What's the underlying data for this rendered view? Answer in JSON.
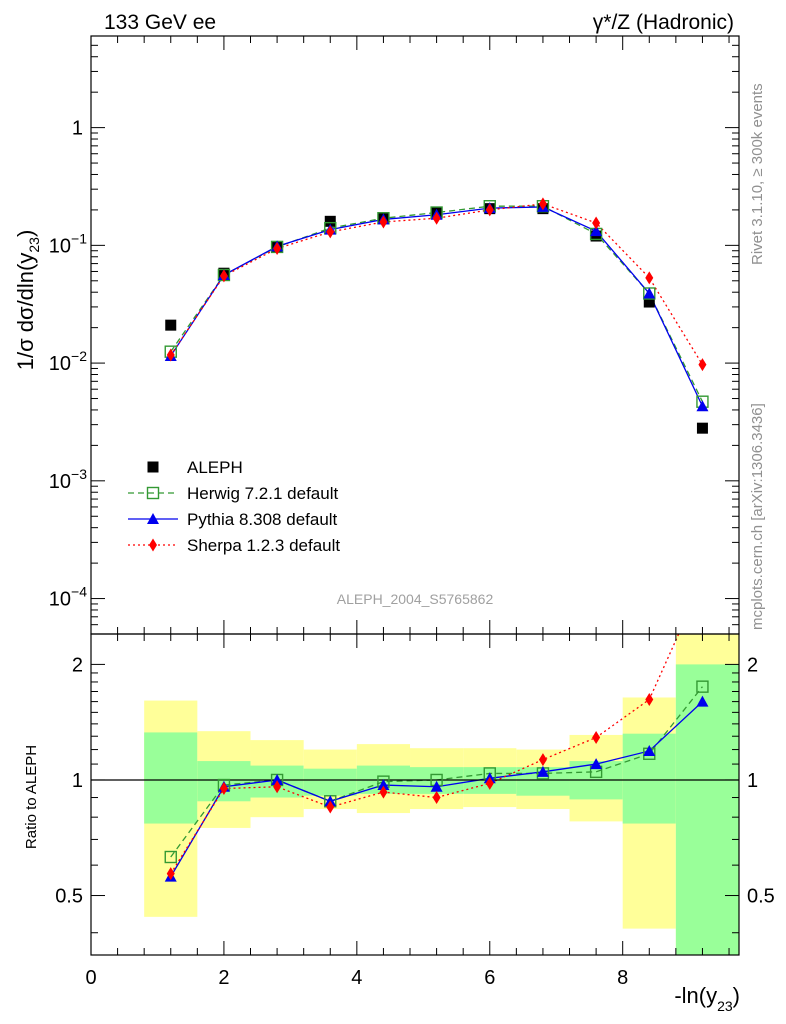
{
  "header": {
    "left": "133 GeV ee",
    "right": "γ*/Z (Hadronic)"
  },
  "side": {
    "rivet": "Rivet 3.1.10, ≥ 300k events",
    "mcplots": "mcplots.cern.ch [arXiv:1306.3436]"
  },
  "analysis_label": "ALEPH_2004_S5765862",
  "colors": {
    "data": "#000000",
    "herwig": "#339933",
    "pythia": "#0000ee",
    "sherpa": "#ff0000",
    "band_inner": "#99ff99",
    "band_outer": "#ffff99"
  },
  "chart_data": [
    {
      "type": "line",
      "scale": "log",
      "ylabel": "1/σ dσ/dln(y23)",
      "ylim": [
        5e-05,
        6
      ],
      "xlim": [
        0,
        9.75
      ],
      "yticks": [
        {
          "value": 0.0001,
          "mant": "10",
          "exp": "−4"
        },
        {
          "value": 0.001,
          "mant": "10",
          "exp": "−3"
        },
        {
          "value": 0.01,
          "mant": "10",
          "exp": "−2"
        },
        {
          "value": 0.1,
          "mant": "10",
          "exp": "−1"
        },
        {
          "value": 1,
          "mant": "1",
          "exp": ""
        }
      ],
      "legend_position": "bottom-left",
      "x": [
        1.2,
        2.0,
        2.8,
        3.6,
        4.4,
        5.2,
        6.0,
        6.8,
        7.6,
        8.4,
        9.2
      ],
      "series": [
        {
          "name": "ALEPH",
          "key": "data",
          "marker": "square",
          "line": "none",
          "values": [
            0.021,
            0.058,
            0.097,
            0.16,
            0.17,
            0.19,
            0.205,
            0.205,
            0.12,
            0.033,
            0.0028
          ]
        },
        {
          "name": "Herwig 7.2.1 default",
          "key": "herwig",
          "marker": "open-square",
          "line": "dashed",
          "values": [
            0.0125,
            0.056,
            0.097,
            0.14,
            0.17,
            0.19,
            0.215,
            0.215,
            0.125,
            0.039,
            0.0047
          ]
        },
        {
          "name": "Pythia 8.308 default",
          "key": "pythia",
          "marker": "triangle",
          "line": "solid",
          "values": [
            0.0115,
            0.056,
            0.098,
            0.136,
            0.166,
            0.182,
            0.207,
            0.212,
            0.132,
            0.039,
            0.0043
          ]
        },
        {
          "name": "Sherpa 1.2.3 default",
          "key": "sherpa",
          "marker": "diamond",
          "line": "dotted",
          "values": [
            0.0117,
            0.055,
            0.094,
            0.13,
            0.158,
            0.17,
            0.2,
            0.225,
            0.155,
            0.053,
            0.0097
          ]
        }
      ]
    },
    {
      "type": "line",
      "scale": "log",
      "ylabel": "Ratio to ALEPH",
      "xlabel": "-ln(y23)",
      "ylim": [
        0.35,
        2.4
      ],
      "xlim": [
        0,
        9.75
      ],
      "yticks": [
        0.5,
        1,
        2
      ],
      "xticks": [
        0,
        2,
        4,
        6,
        8
      ],
      "x": [
        1.2,
        2.0,
        2.8,
        3.6,
        4.4,
        5.2,
        6.0,
        6.8,
        7.6,
        8.4,
        9.2
      ],
      "bins": [
        {
          "lo": 0.8,
          "hi": 1.6,
          "inner": [
            0.77,
            1.33
          ],
          "outer": [
            0.44,
            1.61
          ]
        },
        {
          "lo": 1.6,
          "hi": 2.4,
          "inner": [
            0.88,
            1.12
          ],
          "outer": [
            0.75,
            1.34
          ]
        },
        {
          "lo": 2.4,
          "hi": 3.2,
          "inner": [
            0.9,
            1.09
          ],
          "outer": [
            0.8,
            1.27
          ]
        },
        {
          "lo": 3.2,
          "hi": 4.0,
          "inner": [
            0.91,
            1.07
          ],
          "outer": [
            0.84,
            1.2
          ]
        },
        {
          "lo": 4.0,
          "hi": 4.8,
          "inner": [
            0.92,
            1.09
          ],
          "outer": [
            0.82,
            1.24
          ]
        },
        {
          "lo": 4.8,
          "hi": 5.6,
          "inner": [
            0.92,
            1.08
          ],
          "outer": [
            0.84,
            1.21
          ]
        },
        {
          "lo": 5.6,
          "hi": 6.4,
          "inner": [
            0.92,
            1.08
          ],
          "outer": [
            0.85,
            1.21
          ]
        },
        {
          "lo": 6.4,
          "hi": 7.2,
          "inner": [
            0.91,
            1.08
          ],
          "outer": [
            0.84,
            1.2
          ]
        },
        {
          "lo": 7.2,
          "hi": 8.0,
          "inner": [
            0.89,
            1.12
          ],
          "outer": [
            0.78,
            1.31
          ]
        },
        {
          "lo": 8.0,
          "hi": 8.8,
          "inner": [
            0.77,
            1.32
          ],
          "outer": [
            0.41,
            1.64
          ]
        },
        {
          "lo": 8.8,
          "hi": 9.75,
          "inner": [
            0.3,
            2.0
          ],
          "outer": [
            0.3,
            2.4
          ]
        }
      ],
      "series": [
        {
          "name": "Herwig 7.2.1 default",
          "key": "herwig",
          "marker": "open-square",
          "line": "dashed",
          "values": [
            0.63,
            0.97,
            1.0,
            0.88,
            0.99,
            1.0,
            1.04,
            1.04,
            1.05,
            1.17,
            1.75
          ]
        },
        {
          "name": "Pythia 8.308 default",
          "key": "pythia",
          "marker": "triangle",
          "line": "solid",
          "values": [
            0.56,
            0.96,
            1.0,
            0.88,
            0.97,
            0.96,
            1.01,
            1.05,
            1.1,
            1.19,
            1.6
          ]
        },
        {
          "name": "Sherpa 1.2.3 default",
          "key": "sherpa",
          "marker": "diamond",
          "line": "dotted",
          "values": [
            0.57,
            0.95,
            0.96,
            0.85,
            0.93,
            0.9,
            0.98,
            1.13,
            1.29,
            1.62,
            3.3
          ]
        }
      ]
    }
  ]
}
